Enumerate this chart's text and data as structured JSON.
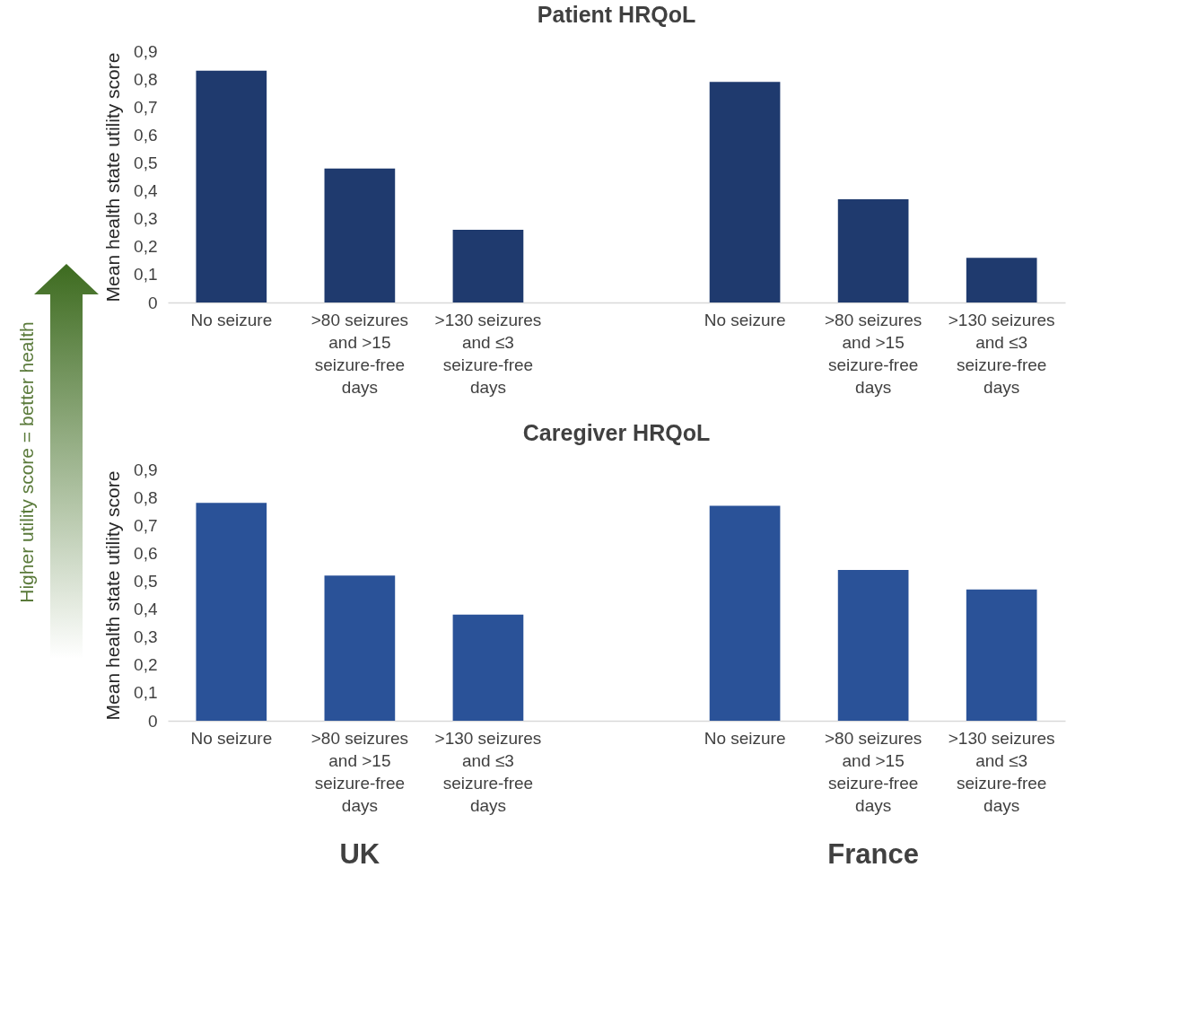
{
  "chart_data": [
    {
      "type": "bar",
      "title": "Patient HRQoL",
      "ylabel": "Mean health state utility score",
      "categories": [
        "No seizure",
        ">80 seizures and >15 seizure-free days",
        ">130 seizures and ≤3 seizure-free days",
        null,
        "No seizure",
        ">80 seizures and >15 seizure-free days",
        ">130 seizures and ≤3 seizure-free days"
      ],
      "values": [
        0.83,
        0.48,
        0.26,
        null,
        0.79,
        0.37,
        0.16
      ],
      "colors": [
        "#1f3a6e",
        "#1f3a6e",
        "#1f3a6e",
        null,
        "#1f3a6e",
        "#1f3a6e",
        "#1f3a6e"
      ],
      "ylim": [
        0,
        0.9
      ],
      "yticks": [
        0,
        {
          "value": 0.1,
          "label": "0,1"
        },
        {
          "value": 0.2,
          "label": "0,2"
        },
        {
          "value": 0.3,
          "label": "0,3"
        },
        {
          "value": 0.4,
          "label": "0,4"
        },
        {
          "value": 0.5,
          "label": "0,5"
        },
        {
          "value": 0.6,
          "label": "0,6"
        },
        {
          "value": 0.7,
          "label": "0,7"
        },
        {
          "value": 0.8,
          "label": "0,8"
        },
        {
          "value": 0.9,
          "label": "0,9"
        }
      ],
      "annotations": [
        "Higher utility score = better health"
      ]
    },
    {
      "type": "bar",
      "title": "Caregiver HRQoL",
      "ylabel": "Mean health state utility score",
      "categories": [
        "No seizure",
        ">80 seizures and >15 seizure-free days",
        ">130 seizures and ≤3 seizure-free days",
        null,
        "No seizure",
        ">80 seizures and >15 seizure-free days",
        ">130 seizures and ≤3 seizure-free days"
      ],
      "values": [
        0.78,
        0.52,
        0.38,
        null,
        0.77,
        0.54,
        0.47
      ],
      "colors": [
        "#2a5298",
        "#2a5298",
        "#2a5298",
        null,
        "#2a5298",
        "#2a5298",
        "#2a5298"
      ],
      "ylim": [
        0,
        0.9
      ],
      "yticks": [
        0,
        {
          "value": 0.1,
          "label": "0,1"
        },
        {
          "value": 0.2,
          "label": "0,2"
        },
        {
          "value": 0.3,
          "label": "0,3"
        },
        {
          "value": 0.4,
          "label": "0,4"
        },
        {
          "value": 0.5,
          "label": "0,5"
        },
        {
          "value": 0.6,
          "label": "0,6"
        },
        {
          "value": 0.7,
          "label": "0,7"
        },
        {
          "value": 0.8,
          "label": "0,8"
        },
        {
          "value": 0.9,
          "label": "0,9"
        }
      ],
      "annotations": [
        "UK",
        "France"
      ]
    }
  ]
}
